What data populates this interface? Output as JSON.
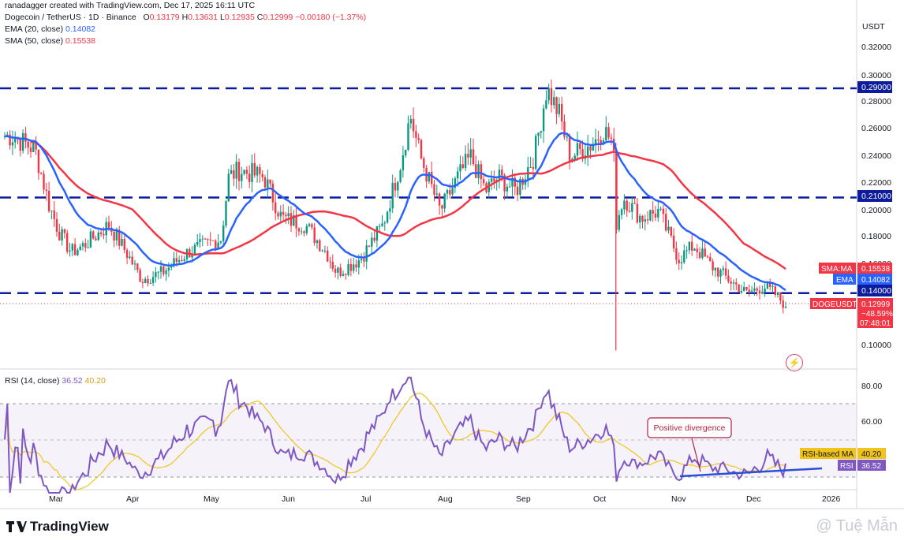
{
  "header": {
    "author_line": "ranadagger created with TradingView.com, Dec 17, 2025 16:11 UTC",
    "symbol_line": "Dogecoin / TetherUS · 1D · Binance",
    "ohlc": {
      "o_label": "O",
      "o": "0.13179",
      "h_label": "H",
      "h": "0.13631",
      "l_label": "L",
      "l": "0.12935",
      "c_label": "C",
      "c": "0.12999",
      "change": "−0.00180 (−1.37%)"
    },
    "ema_label": "EMA (20, close)",
    "ema_value": "0.14082",
    "sma_label": "SMA (50, close)",
    "sma_value": "0.15538"
  },
  "rsi_header": {
    "label": "RSI (14, close)",
    "rsi_value": "36.52",
    "ma_value": "40.20"
  },
  "price_axis": {
    "currency": "USDT",
    "ticks": [
      "0.32000",
      "0.30000",
      "0.28000",
      "0.26000",
      "0.24000",
      "0.22000",
      "0.20000",
      "0.18000",
      "0.16000",
      "0.10000"
    ],
    "level_labels": [
      "0.29000",
      "0.21000",
      "0.14000"
    ],
    "sma_tag": {
      "name": "SMA:MA",
      "value": "0.15538"
    },
    "ema_tag": {
      "name": "EMA",
      "value": "0.14082"
    },
    "price_tag": {
      "name": "DOGEUSDT",
      "value": "0.12999",
      "change": "−48.59%",
      "countdown": "07:48:01"
    }
  },
  "rsi_axis": {
    "ticks": [
      "80.00",
      "60.00"
    ],
    "ma_tag": {
      "name": "RSI-based MA",
      "value": "40.20"
    },
    "rsi_tag": {
      "name": "RSI",
      "value": "36.52"
    }
  },
  "time_axis": [
    "Mar",
    "Apr",
    "May",
    "Jun",
    "Jul",
    "Aug",
    "Sep",
    "Oct",
    "Nov",
    "Dec",
    "2026"
  ],
  "annotation": "Positive divergence",
  "footer": {
    "brand": "TradingView",
    "watermark": "@ Tuệ Mẫn"
  },
  "colors": {
    "up": "#089981",
    "down": "#f23645",
    "ema": "#2962ff",
    "sma": "#f23645",
    "level": "#0d1b9e",
    "rsi": "#7e57c2",
    "rsi_ma": "#f0c419",
    "trend": "#2b4fd8"
  },
  "chart_data": {
    "type": "candlestick",
    "title": "Dogecoin / TetherUS · 1D · Binance",
    "ylim": [
      0.09,
      0.33
    ],
    "horizontal_levels": [
      0.29,
      0.21,
      0.14
    ],
    "x_months": [
      "Mar",
      "Apr",
      "May",
      "Jun",
      "Jul",
      "Aug",
      "Sep",
      "Oct",
      "Nov",
      "Dec",
      "2026"
    ],
    "close_path": [
      [
        "Feb 16",
        0.255
      ],
      [
        "Feb 24",
        0.245
      ],
      [
        "Mar 1",
        0.205
      ],
      [
        "Mar 5",
        0.185
      ],
      [
        "Mar 10",
        0.17
      ],
      [
        "Mar 15",
        0.175
      ],
      [
        "Mar 25",
        0.19
      ],
      [
        "Apr 1",
        0.17
      ],
      [
        "Apr 7",
        0.15
      ],
      [
        "Apr 15",
        0.155
      ],
      [
        "Apr 25",
        0.17
      ],
      [
        "May 1",
        0.175
      ],
      [
        "May 8",
        0.18
      ],
      [
        "May 11",
        0.225
      ],
      [
        "May 15",
        0.23
      ],
      [
        "May 25",
        0.225
      ],
      [
        "Jun 1",
        0.195
      ],
      [
        "Jun 10",
        0.19
      ],
      [
        "Jun 18",
        0.17
      ],
      [
        "Jun 22",
        0.155
      ],
      [
        "Jul 1",
        0.165
      ],
      [
        "Jul 10",
        0.19
      ],
      [
        "Jul 17",
        0.235
      ],
      [
        "Jul 21",
        0.27
      ],
      [
        "Jul 25",
        0.24
      ],
      [
        "Aug 2",
        0.2
      ],
      [
        "Aug 9",
        0.225
      ],
      [
        "Aug 14",
        0.24
      ],
      [
        "Aug 20",
        0.215
      ],
      [
        "Aug 25",
        0.225
      ],
      [
        "Sep 1",
        0.215
      ],
      [
        "Sep 8",
        0.24
      ],
      [
        "Sep 13",
        0.29
      ],
      [
        "Sep 18",
        0.27
      ],
      [
        "Sep 22",
        0.24
      ],
      [
        "Oct 1",
        0.25
      ],
      [
        "Oct 5",
        0.26
      ],
      [
        "Oct 9",
        0.25
      ],
      [
        "Oct 10",
        0.19
      ],
      [
        "Oct 13",
        0.21
      ],
      [
        "Oct 20",
        0.195
      ],
      [
        "Oct 27",
        0.2
      ],
      [
        "Nov 4",
        0.165
      ],
      [
        "Nov 10",
        0.175
      ],
      [
        "Nov 17",
        0.16
      ],
      [
        "Nov 24",
        0.15
      ],
      [
        "Dec 1",
        0.14
      ],
      [
        "Dec 8",
        0.145
      ],
      [
        "Dec 12",
        0.14
      ],
      [
        "Dec 17",
        0.12999
      ]
    ],
    "low_wick_oct_10": 0.098,
    "ema20_last": 0.14082,
    "sma50_last": 0.15538,
    "rsi_last": 36.52,
    "rsi_ma_last": 40.2
  }
}
